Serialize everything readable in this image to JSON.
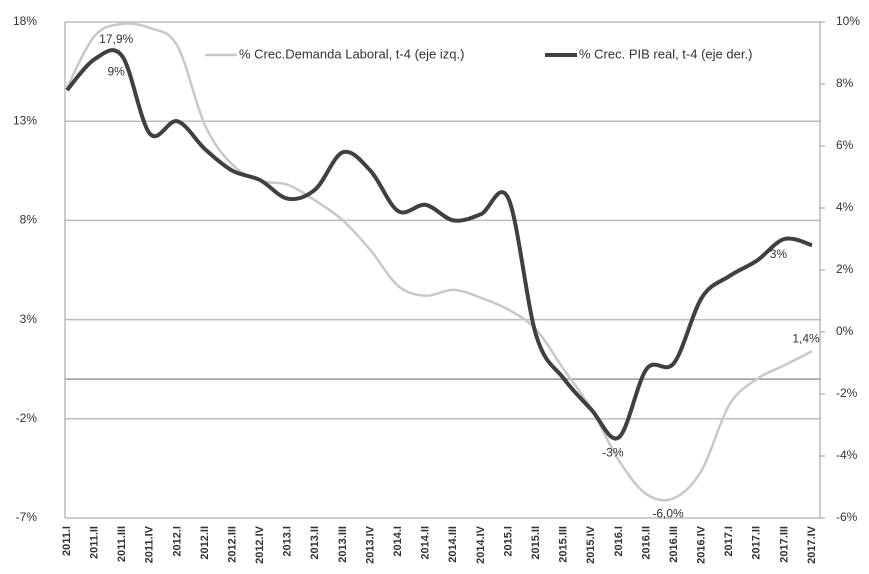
{
  "chart_data": {
    "type": "line",
    "categories": [
      "2011.I",
      "2011.II",
      "2011.III",
      "2011.IV",
      "2012.I",
      "2012.II",
      "2012.III",
      "2012.IV",
      "2013.I",
      "2013.II",
      "2013.III",
      "2013.IV",
      "2014.I",
      "2014.II",
      "2014.III",
      "2014.IV",
      "2015.I",
      "2015.II",
      "2015.III",
      "2015.IV",
      "2016.I",
      "2016.II",
      "2016.III",
      "2016.IV",
      "2017.I",
      "2017.II",
      "2017.III",
      "2017.IV"
    ],
    "series": [
      {
        "name": "% Crec.Demanda Laboral, t-4 (eje izq.)",
        "color": "#c8c8c8",
        "axis": "y",
        "values": [
          14.7,
          17.3,
          17.9,
          17.7,
          16.8,
          12.8,
          10.8,
          10.0,
          9.8,
          9.0,
          8.0,
          6.5,
          4.7,
          4.2,
          4.5,
          4.1,
          3.5,
          2.5,
          0.5,
          -1.5,
          -4.1,
          -5.8,
          -6.0,
          -4.6,
          -1.3,
          0.0,
          0.7,
          1.4
        ],
        "value_labels": [
          null,
          null,
          "17,9%",
          null,
          null,
          null,
          null,
          null,
          null,
          null,
          null,
          null,
          null,
          null,
          null,
          null,
          null,
          null,
          null,
          null,
          null,
          null,
          "-6,0%",
          null,
          null,
          null,
          null,
          "1,4%"
        ]
      },
      {
        "name": "% Crec. PIB real, t-4 (eje der.)",
        "color": "#404040",
        "axis": "y2",
        "values": [
          7.8,
          8.8,
          8.9,
          6.4,
          6.8,
          5.9,
          5.2,
          4.9,
          4.3,
          4.6,
          5.8,
          5.2,
          3.9,
          4.1,
          3.6,
          3.8,
          4.3,
          -0.1,
          -1.5,
          -2.5,
          -3.4,
          -1.2,
          -1.0,
          1.1,
          1.8,
          2.3,
          3.0,
          2.8
        ],
        "value_labels": [
          null,
          null,
          "9%",
          null,
          null,
          null,
          null,
          null,
          null,
          null,
          null,
          null,
          null,
          null,
          null,
          null,
          null,
          null,
          null,
          null,
          "-3%",
          null,
          null,
          null,
          null,
          null,
          "3%",
          null
        ]
      }
    ],
    "ylim": [
      -7,
      18
    ],
    "yticks": [
      {
        "value": -7,
        "label": "-7%"
      },
      {
        "value": -2,
        "label": "-2%"
      },
      {
        "value": 3,
        "label": "3%"
      },
      {
        "value": 8,
        "label": "8%"
      },
      {
        "value": 13,
        "label": "13%"
      },
      {
        "value": 18,
        "label": "18%"
      }
    ],
    "y2lim": [
      -6,
      10
    ],
    "y2ticks": [
      {
        "value": -6,
        "label": "-6%"
      },
      {
        "value": -4,
        "label": "-4%"
      },
      {
        "value": -2,
        "label": "-2%"
      },
      {
        "value": 0,
        "label": "0%"
      },
      {
        "value": 2,
        "label": "2%"
      },
      {
        "value": 4,
        "label": "4%"
      },
      {
        "value": 6,
        "label": "6%"
      },
      {
        "value": 8,
        "label": "8%"
      },
      {
        "value": 10,
        "label": "10%"
      }
    ],
    "grid": true,
    "legend": "top"
  }
}
